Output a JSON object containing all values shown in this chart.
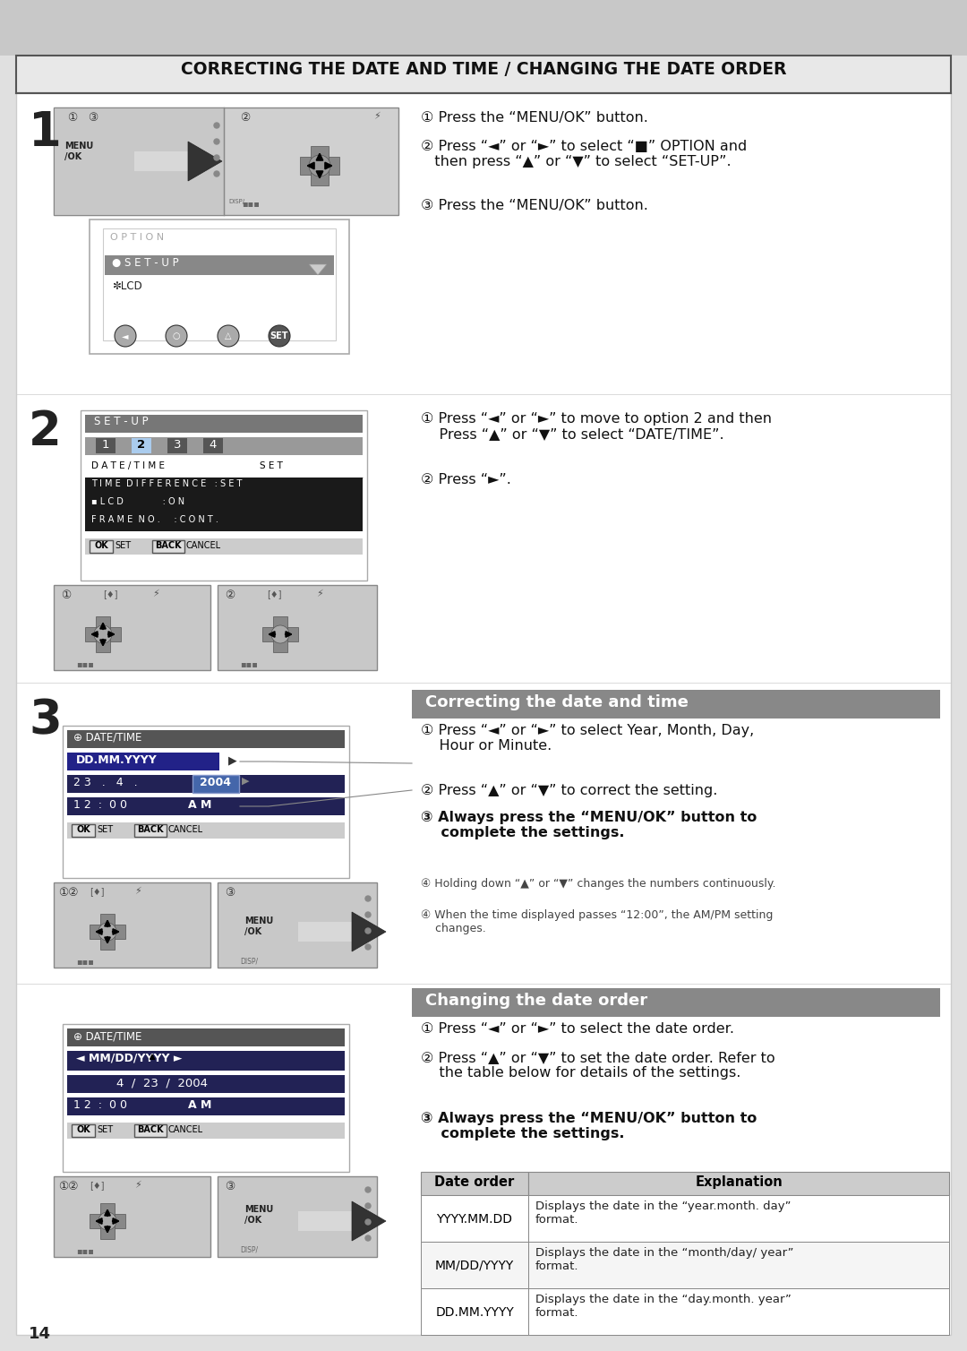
{
  "title": "CORRECTING THE DATE AND TIME / CHANGING THE DATE ORDER",
  "page_number": "14",
  "step1_instructions": [
    "① Press the “MENU/OK” button.",
    "② Press “◄” or “►” to select “■” OPTION and\n   then press “▲” or “▼” to select “SET-UP”.",
    "③ Press the “MENU/OK” button."
  ],
  "step2_instructions": [
    "① Press “◄” or “►” to move to option 2 and then\n    Press “▲” or “▼” to select “DATE/TIME”.",
    "② Press “►”."
  ],
  "step3_title": "Correcting the date and time",
  "step3_instructions": [
    "① Press “◄” or “►” to select Year, Month, Day,\n    Hour or Minute.",
    "② Press “▲” or “▼” to correct the setting.",
    "③ Always press the “MENU/OK” button to\n    complete the settings."
  ],
  "step3_notes": [
    "④ Holding down “▲” or “▼” changes the numbers continuously.",
    "④ When the time displayed passes “12:00”, the AM/PM setting\n    changes."
  ],
  "step4_title": "Changing the date order",
  "step4_instructions": [
    "① Press “◄” or “►” to select the date order.",
    "② Press “▲” or “▼” to set the date order. Refer to\n    the table below for details of the settings.",
    "③ Always press the “MENU/OK” button to\n    complete the settings."
  ],
  "table_headers": [
    "Date order",
    "Explanation"
  ],
  "table_rows": [
    [
      "YYYY.MM.DD",
      "Displays the date in the “year.month. day”\nformat."
    ],
    [
      "MM/DD/YYYY",
      "Displays the date in the “month/day/ year”\nformat."
    ],
    [
      "DD.MM.YYYY",
      "Displays the date in the “day.month. year”\nformat."
    ]
  ],
  "bg_light": "#e8e8e8",
  "bg_white": "#ffffff",
  "header_bar_color": "#888888",
  "lcd_dark": "#2a2a2a",
  "lcd_selected": "#3a5a8a",
  "lcd_header": "#555555"
}
